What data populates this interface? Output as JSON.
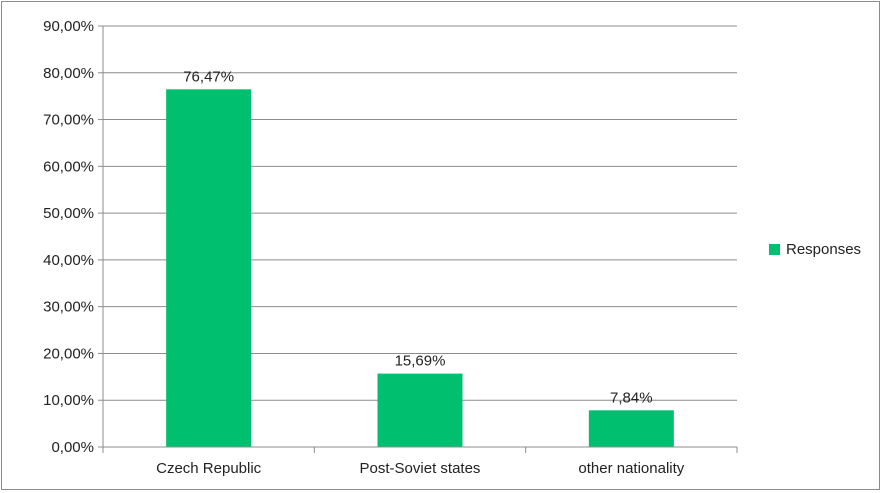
{
  "chart_data": {
    "type": "bar",
    "categories": [
      "Czech Republic",
      "Post-Soviet states",
      "other nationality"
    ],
    "series": [
      {
        "name": "Responses",
        "values": [
          76.47,
          15.69,
          7.84
        ],
        "color": "#00bf6f"
      }
    ],
    "data_labels": [
      "76,47%",
      "15,69%",
      "7,84%"
    ],
    "yticks": [
      "0,00%",
      "10,00%",
      "20,00%",
      "30,00%",
      "40,00%",
      "50,00%",
      "60,00%",
      "70,00%",
      "80,00%",
      "90,00%"
    ],
    "ylim": [
      0,
      90
    ],
    "grid": true,
    "legend_position": "right",
    "title": "",
    "xlabel": "",
    "ylabel": ""
  }
}
